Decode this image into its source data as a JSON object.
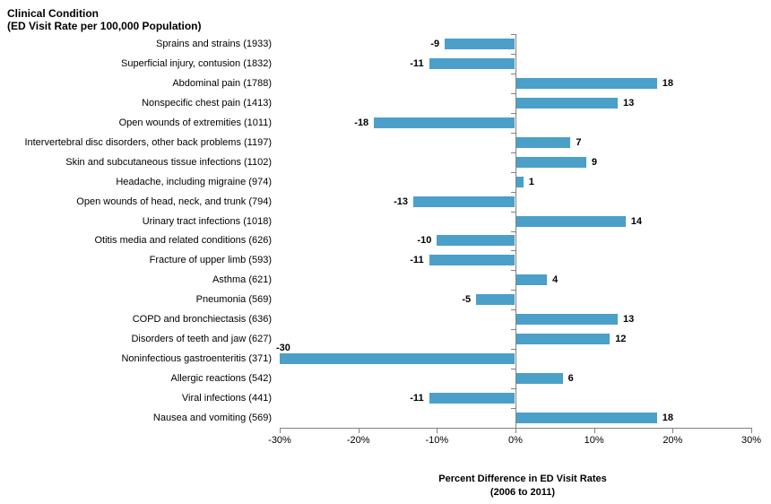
{
  "chart_data": {
    "type": "bar",
    "orientation": "horizontal",
    "title_line1": "Clinical Condition",
    "title_line2": "(ED Visit Rate per 100,000 Population)",
    "xlabel_line1": "Percent Difference in ED Visit Rates",
    "xlabel_line2": "(2006 to 2011)",
    "xlim": [
      -30,
      30
    ],
    "x_tick_values": [
      -30,
      -20,
      -10,
      0,
      10,
      20,
      30
    ],
    "x_tick_labels": [
      "-30%",
      "-20%",
      "-10%",
      "0%",
      "10%",
      "20%",
      "30%"
    ],
    "grid": false,
    "legend": null,
    "bar_color": "#4AA0C8",
    "axis_color": "#808080",
    "categories": [
      "Sprains and strains (1933)",
      "Superficial injury, contusion (1832)",
      "Abdominal pain (1788)",
      "Nonspecific chest pain (1413)",
      "Open wounds of extremities (1011)",
      "Intervertebral disc disorders, other back problems (1197)",
      "Skin and subcutaneous tissue infections (1102)",
      "Headache, including migraine (974)",
      "Open wounds of head, neck, and trunk (794)",
      "Urinary tract infections (1018)",
      "Otitis media and related conditions (626)",
      "Fracture of upper limb (593)",
      "Asthma (621)",
      "Pneumonia (569)",
      "COPD and bronchiectasis (636)",
      "Disorders of teeth and jaw (627)",
      "Noninfectious gastroenteritis (371)",
      "Allergic reactions (542)",
      "Viral infections (441)",
      "Nausea and vomiting (569)"
    ],
    "values": [
      -9,
      -11,
      18,
      13,
      -18,
      7,
      9,
      1,
      -13,
      14,
      -10,
      -11,
      4,
      -5,
      13,
      12,
      -30,
      6,
      -11,
      18
    ]
  }
}
